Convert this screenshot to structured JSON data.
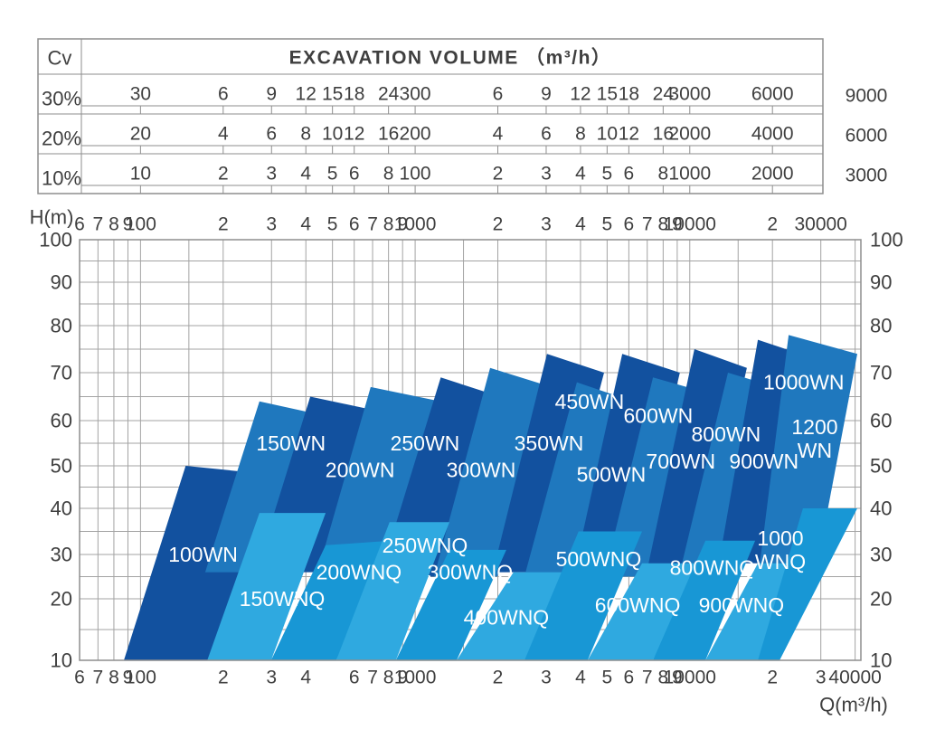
{
  "colors": {
    "wn-dark": "#12519F",
    "wn-medium": "#1F78BE",
    "wnq-a": "#2FA9E0",
    "wnq-b": "#1897D5",
    "grid": "#a3a3a3",
    "border": "#8e8e8e",
    "text": "#3f3f3f",
    "pump_label_text": "#ffffff"
  },
  "table": {
    "cv_header": "Cv",
    "title": "EXCAVATION VOLUME （m³/h）",
    "tick_q_positions": [
      100,
      200,
      300,
      400,
      500,
      600,
      800,
      1000,
      2000,
      3000,
      4000,
      5000,
      6000,
      8000,
      10000,
      20000
    ],
    "rows": [
      {
        "label": "30%",
        "cells": [
          "30",
          "6",
          "9",
          "12",
          "15",
          "18",
          "24",
          "300",
          "6",
          "9",
          "12",
          "15",
          "18",
          "24",
          "3000",
          "6000"
        ],
        "outside": "9000"
      },
      {
        "label": "20%",
        "cells": [
          "20",
          "4",
          "6",
          "8",
          "10",
          "12",
          "16",
          "200",
          "4",
          "6",
          "8",
          "10",
          "12",
          "16",
          "2000",
          "4000"
        ],
        "outside": "6000"
      },
      {
        "label": "10%",
        "cells": [
          "10",
          "2",
          "3",
          "4",
          "5",
          "6",
          "8",
          "100",
          "2",
          "3",
          "4",
          "5",
          "6",
          "8",
          "1000",
          "2000"
        ],
        "outside": "3000"
      }
    ]
  },
  "axes": {
    "h_axis_title": "H(m)",
    "q_axis_title": "Q(m³/h)",
    "y_ticks": [
      100,
      90,
      80,
      70,
      60,
      50,
      40,
      30,
      20,
      10
    ],
    "top_x_ticks": [
      {
        "q": 60,
        "label": "6"
      },
      {
        "q": 70,
        "label": "7"
      },
      {
        "q": 80,
        "label": "8"
      },
      {
        "q": 90,
        "label": "9"
      },
      {
        "q": 100,
        "label": "100"
      },
      {
        "q": 200,
        "label": "2"
      },
      {
        "q": 300,
        "label": "3"
      },
      {
        "q": 400,
        "label": "4"
      },
      {
        "q": 500,
        "label": "5"
      },
      {
        "q": 600,
        "label": "6"
      },
      {
        "q": 700,
        "label": "7"
      },
      {
        "q": 800,
        "label": "8"
      },
      {
        "q": 900,
        "label": "9"
      },
      {
        "q": 1000,
        "label": "1000"
      },
      {
        "q": 2000,
        "label": "2"
      },
      {
        "q": 3000,
        "label": "3"
      },
      {
        "q": 4000,
        "label": "4"
      },
      {
        "q": 5000,
        "label": "5"
      },
      {
        "q": 6000,
        "label": "6"
      },
      {
        "q": 7000,
        "label": "7"
      },
      {
        "q": 8000,
        "label": "8"
      },
      {
        "q": 9000,
        "label": "9"
      },
      {
        "q": 10000,
        "label": "10000"
      },
      {
        "q": 20000,
        "label": "2"
      },
      {
        "q": 30000,
        "label": "30000"
      }
    ],
    "bottom_x_ticks": [
      {
        "q": 60,
        "label": "6"
      },
      {
        "q": 70,
        "label": "7"
      },
      {
        "q": 80,
        "label": "8"
      },
      {
        "q": 90,
        "label": "9"
      },
      {
        "q": 100,
        "label": "100"
      },
      {
        "q": 200,
        "label": "2"
      },
      {
        "q": 300,
        "label": "3"
      },
      {
        "q": 400,
        "label": "4"
      },
      {
        "q": 600,
        "label": "6"
      },
      {
        "q": 700,
        "label": "7"
      },
      {
        "q": 800,
        "label": "8"
      },
      {
        "q": 900,
        "label": "9"
      },
      {
        "q": 1000,
        "label": "1000"
      },
      {
        "q": 2000,
        "label": "2"
      },
      {
        "q": 3000,
        "label": "3"
      },
      {
        "q": 4000,
        "label": "4"
      },
      {
        "q": 5000,
        "label": "5"
      },
      {
        "q": 6000,
        "label": "6"
      },
      {
        "q": 7000,
        "label": "7"
      },
      {
        "q": 8000,
        "label": "8"
      },
      {
        "q": 9000,
        "label": "9"
      },
      {
        "q": 10000,
        "label": "10000"
      },
      {
        "q": 20000,
        "label": "2"
      },
      {
        "q": 30000,
        "label": "3"
      },
      {
        "q": 40000,
        "label": "40000"
      }
    ]
  },
  "chart_data": {
    "type": "area",
    "x_scale": "log",
    "x_range_q_m3h": [
      60,
      42000
    ],
    "y_range_h_m": [
      10,
      100
    ],
    "xlabel": "Q(m³/h)",
    "ylabel": "H(m)",
    "grid": true,
    "series": [
      {
        "name": "100WN",
        "family": "WN",
        "shade": "wn-dark",
        "region_qh": [
          [
            87,
            10
          ],
          [
            185,
            10
          ],
          [
            294,
            48
          ],
          [
            146,
            50
          ]
        ],
        "label": {
          "q": 169,
          "h": 30,
          "lines": [
            "100WN"
          ]
        }
      },
      {
        "name": "150WN",
        "family": "WN",
        "shade": "wn-medium",
        "region_qh": [
          [
            172,
            26
          ],
          [
            299,
            26
          ],
          [
            472,
            61
          ],
          [
            271,
            64
          ]
        ],
        "label": {
          "q": 353,
          "h": 55,
          "lines": [
            "150WN"
          ]
        }
      },
      {
        "name": "200WN",
        "family": "WN",
        "shade": "wn-dark",
        "region_qh": [
          [
            263,
            26
          ],
          [
            464,
            26
          ],
          [
            732,
            62
          ],
          [
            415,
            65
          ]
        ],
        "label": {
          "q": 630,
          "h": 49,
          "lines": [
            "200WN"
          ]
        }
      },
      {
        "name": "250WN",
        "family": "WN",
        "shade": "wn-medium",
        "region_qh": [
          [
            437,
            25
          ],
          [
            784,
            25
          ],
          [
            1236,
            64
          ],
          [
            689,
            67
          ]
        ],
        "label": {
          "q": 1086,
          "h": 55,
          "lines": [
            "250WN"
          ]
        }
      },
      {
        "name": "300WN",
        "family": "WN",
        "shade": "wn-dark",
        "region_qh": [
          [
            743,
            25
          ],
          [
            1264,
            25
          ],
          [
            2037,
            65
          ],
          [
            1240,
            69
          ]
        ],
        "label": {
          "q": 1738,
          "h": 49,
          "lines": [
            "300WN"
          ]
        }
      },
      {
        "name": "350WN",
        "family": "WN",
        "shade": "wn-medium",
        "region_qh": [
          [
            1172,
            25
          ],
          [
            1992,
            25
          ],
          [
            3140,
            67
          ],
          [
            1875,
            71
          ]
        ],
        "label": {
          "q": 3069,
          "h": 55,
          "lines": [
            "350WN"
          ]
        }
      },
      {
        "name": "450WN",
        "family": "WN",
        "shade": "wn-dark",
        "region_qh": [
          [
            1918,
            26
          ],
          [
            3140,
            26
          ],
          [
            4875,
            70
          ],
          [
            3020,
            74
          ]
        ],
        "label": {
          "q": 4315,
          "h": 64,
          "lines": [
            "450WN"
          ]
        }
      },
      {
        "name": "500WN",
        "family": "WN",
        "shade": "wn-medium",
        "region_qh": [
          [
            2500,
            25
          ],
          [
            4093,
            25
          ],
          [
            6210,
            64
          ],
          [
            3880,
            68
          ]
        ],
        "label": {
          "q": 5176,
          "h": 48,
          "lines": [
            "500WN"
          ]
        }
      },
      {
        "name": "600WN",
        "family": "WN",
        "shade": "wn-dark",
        "region_qh": [
          [
            3793,
            26
          ],
          [
            6210,
            26
          ],
          [
            9200,
            70
          ],
          [
            5678,
            74
          ]
        ],
        "label": {
          "q": 7674,
          "h": 61,
          "lines": [
            "600WN"
          ]
        }
      },
      {
        "name": "700WN",
        "family": "WN",
        "shade": "wn-medium",
        "region_qh": [
          [
            4875,
            25
          ],
          [
            7800,
            25
          ],
          [
            11220,
            66
          ],
          [
            7345,
            69
          ]
        ],
        "label": {
          "q": 9270,
          "h": 51,
          "lines": [
            "700WN"
          ]
        }
      },
      {
        "name": "800WN",
        "family": "WN",
        "shade": "wn-dark",
        "region_qh": [
          [
            6966,
            26
          ],
          [
            10965,
            26
          ],
          [
            16140,
            71
          ],
          [
            10400,
            75
          ]
        ],
        "label": {
          "q": 13550,
          "h": 57,
          "lines": [
            "800WN"
          ]
        }
      },
      {
        "name": "900WN",
        "family": "WN",
        "shade": "wn-medium",
        "region_qh": [
          [
            9200,
            26
          ],
          [
            14520,
            26
          ],
          [
            20560,
            67
          ],
          [
            13770,
            70
          ]
        ],
        "label": {
          "q": 18620,
          "h": 51,
          "lines": [
            "900WN"
          ]
        }
      },
      {
        "name": "1000WN",
        "family": "WN",
        "shade": "wn-dark",
        "region_qh": [
          [
            12760,
            28
          ],
          [
            19680,
            28
          ],
          [
            28310,
            73
          ],
          [
            17700,
            77
          ]
        ],
        "label": {
          "q": 26000,
          "h": 68,
          "lines": [
            "1000WN"
          ]
        }
      },
      {
        "name": "1200WN",
        "family": "WN",
        "shade": "wn-medium",
        "region_qh": [
          [
            18000,
            28
          ],
          [
            28770,
            26
          ],
          [
            40740,
            74
          ],
          [
            22900,
            78
          ]
        ],
        "label": {
          "q": 28510,
          "h": 56,
          "lines": [
            "1200",
            "WN"
          ]
        }
      },
      {
        "name": "150WNQ",
        "family": "WNQ",
        "shade": "wnq-a",
        "region_qh": [
          [
            175,
            10
          ],
          [
            299,
            10
          ],
          [
            472,
            39
          ],
          [
            271,
            39
          ]
        ],
        "label": {
          "q": 328,
          "h": 20,
          "lines": [
            "150WNQ"
          ]
        }
      },
      {
        "name": "200WNQ",
        "family": "WNQ",
        "shade": "wnq-b",
        "region_qh": [
          [
            299,
            10
          ],
          [
            516,
            10
          ],
          [
            815,
            33
          ],
          [
            472,
            32
          ]
        ],
        "label": {
          "q": 624,
          "h": 26,
          "lines": [
            "200WNQ"
          ]
        }
      },
      {
        "name": "250WNQ",
        "family": "WNQ",
        "shade": "wnq-a",
        "region_qh": [
          [
            516,
            10
          ],
          [
            851,
            10
          ],
          [
            1333,
            37
          ],
          [
            807,
            37
          ]
        ],
        "label": {
          "q": 1086,
          "h": 32,
          "lines": [
            "250WNQ"
          ]
        }
      },
      {
        "name": "300WNQ",
        "family": "WNQ",
        "shade": "wnq-b",
        "region_qh": [
          [
            851,
            10
          ],
          [
            1416,
            10
          ],
          [
            2148,
            31
          ],
          [
            1333,
            31
          ]
        ],
        "label": {
          "q": 1585,
          "h": 26,
          "lines": [
            "300WNQ"
          ]
        }
      },
      {
        "name": "400WNQ",
        "family": "WNQ",
        "shade": "wnq-a",
        "region_qh": [
          [
            1416,
            10
          ],
          [
            2501,
            10
          ],
          [
            3936,
            26
          ],
          [
            2280,
            26
          ]
        ],
        "label": {
          "q": 2148,
          "h": 17,
          "lines": [
            "400WNQ"
          ]
        }
      },
      {
        "name": "500WNQ",
        "family": "WNQ",
        "shade": "wnq-b",
        "region_qh": [
          [
            2501,
            10
          ],
          [
            4246,
            10
          ],
          [
            6700,
            35
          ],
          [
            3936,
            35
          ]
        ],
        "label": {
          "q": 4656,
          "h": 29,
          "lines": [
            "500WNQ"
          ]
        }
      },
      {
        "name": "600WNQ",
        "family": "WNQ",
        "shade": "wnq-a",
        "region_qh": [
          [
            4246,
            10
          ],
          [
            7345,
            10
          ],
          [
            11220,
            28
          ],
          [
            6700,
            28
          ]
        ],
        "label": {
          "q": 6457,
          "h": 19,
          "lines": [
            "600WNQ"
          ]
        }
      },
      {
        "name": "800WNQ",
        "family": "WNQ",
        "shade": "wnq-b",
        "region_qh": [
          [
            7345,
            10
          ],
          [
            11400,
            10
          ],
          [
            17300,
            33
          ],
          [
            11400,
            33
          ]
        ],
        "label": {
          "q": 12100,
          "h": 27,
          "lines": [
            "800WNQ"
          ]
        }
      },
      {
        "name": "900WNQ",
        "family": "WNQ",
        "shade": "wnq-a",
        "region_qh": [
          [
            11400,
            10
          ],
          [
            17700,
            10
          ],
          [
            25820,
            28
          ],
          [
            17700,
            28
          ]
        ],
        "label": {
          "q": 15420,
          "h": 19,
          "lines": [
            "900WNQ"
          ]
        }
      },
      {
        "name": "1000WNQ",
        "family": "WNQ",
        "shade": "wnq-b",
        "region_qh": [
          [
            17700,
            10
          ],
          [
            21230,
            10
          ],
          [
            40740,
            40
          ],
          [
            25820,
            40
          ]
        ],
        "label": {
          "q": 21380,
          "h": 31,
          "lines": [
            "1000",
            "WNQ"
          ]
        }
      }
    ]
  }
}
